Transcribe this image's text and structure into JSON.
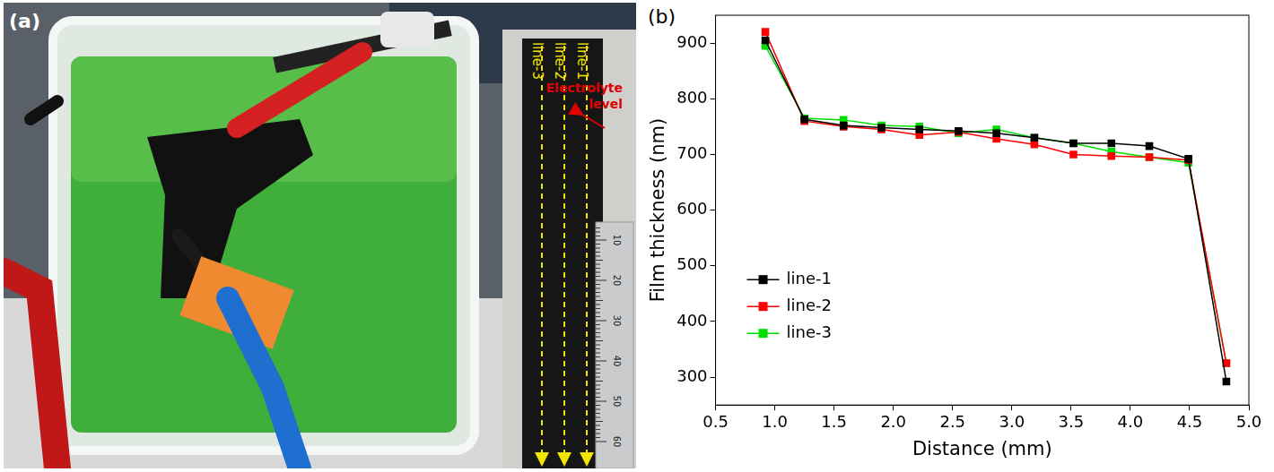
{
  "panel_a": {
    "label": "(a)",
    "lines": [
      "line-1",
      "line-2",
      "line-3"
    ],
    "electrolyte_label": "Electrolyte level",
    "ruler_labels": [
      10,
      20,
      30,
      40,
      50,
      60
    ]
  },
  "chart_data": {
    "type": "line",
    "panel_label": "(b)",
    "x_label": "Distance (mm)",
    "y_label": "Film thickness (nm)",
    "x": [
      0.92,
      1.25,
      1.58,
      1.9,
      2.22,
      2.55,
      2.87,
      3.19,
      3.52,
      3.84,
      4.16,
      4.49,
      4.81
    ],
    "series": [
      {
        "name": "line-1",
        "color": "#000000",
        "marker": "square",
        "values": [
          905,
          763,
          752,
          748,
          745,
          742,
          738,
          730,
          720,
          720,
          715,
          692,
          292
        ]
      },
      {
        "name": "line-2",
        "color": "#ff0000",
        "marker": "square",
        "values": [
          920,
          760,
          750,
          745,
          735,
          740,
          728,
          718,
          700,
          697,
          695,
          690,
          325
        ]
      },
      {
        "name": "line-3",
        "color": "#00e000",
        "marker": "square",
        "values": [
          895,
          765,
          762,
          752,
          750,
          738,
          745,
          730,
          720,
          705,
          695,
          685,
          325
        ]
      }
    ],
    "xlim": [
      0.5,
      5.0
    ],
    "xticks": [
      {
        "value": 0.5,
        "label": "0.5"
      },
      {
        "value": 1.0,
        "label": "1.0"
      },
      {
        "value": 1.5,
        "label": "1.5"
      },
      {
        "value": 2.0,
        "label": "2.0"
      },
      {
        "value": 2.5,
        "label": "2.5"
      },
      {
        "value": 3.0,
        "label": "3.0"
      },
      {
        "value": 3.5,
        "label": "3.5"
      },
      {
        "value": 4.0,
        "label": "4.0"
      },
      {
        "value": 4.5,
        "label": "4.5"
      },
      {
        "value": 5.0,
        "label": "5.0"
      }
    ],
    "ylim": [
      250,
      950
    ],
    "yticks": [
      300,
      400,
      500,
      600,
      700,
      800,
      900
    ],
    "grid": false,
    "legend": "lower left"
  }
}
